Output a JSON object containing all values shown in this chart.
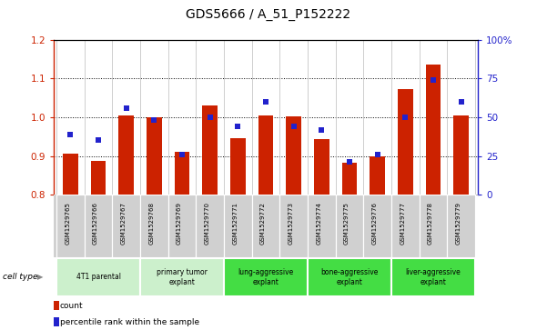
{
  "title": "GDS5666 / A_51_P152222",
  "samples": [
    "GSM1529765",
    "GSM1529766",
    "GSM1529767",
    "GSM1529768",
    "GSM1529769",
    "GSM1529770",
    "GSM1529771",
    "GSM1529772",
    "GSM1529773",
    "GSM1529774",
    "GSM1529775",
    "GSM1529776",
    "GSM1529777",
    "GSM1529778",
    "GSM1529779"
  ],
  "count_values": [
    0.905,
    0.888,
    1.005,
    1.0,
    0.91,
    1.03,
    0.945,
    1.005,
    1.003,
    0.943,
    0.883,
    0.9,
    1.073,
    1.135,
    1.005
  ],
  "percentile_right": [
    39,
    35,
    56,
    48,
    26,
    50,
    44,
    60,
    44,
    42,
    21,
    26,
    50,
    74,
    60
  ],
  "ylim_left": [
    0.8,
    1.2
  ],
  "ylim_right": [
    0,
    100
  ],
  "yticks_left": [
    0.8,
    0.9,
    1.0,
    1.1,
    1.2
  ],
  "yticks_right": [
    0,
    25,
    50,
    75,
    100
  ],
  "ytick_labels_right": [
    "0",
    "25",
    "50",
    "75",
    "100%"
  ],
  "bar_color": "#cc2200",
  "dot_color": "#2222cc",
  "bar_width": 0.55,
  "groups": [
    {
      "label": "4T1 parental",
      "start": 0,
      "end": 2,
      "color": "#ccf0cc"
    },
    {
      "label": "primary tumor\nexplant",
      "start": 3,
      "end": 5,
      "color": "#ccf0cc"
    },
    {
      "label": "lung-aggressive\nexplant",
      "start": 6,
      "end": 8,
      "color": "#44dd44"
    },
    {
      "label": "bone-aggressive\nexplant",
      "start": 9,
      "end": 11,
      "color": "#44dd44"
    },
    {
      "label": "liver-aggressive\nexplant",
      "start": 12,
      "end": 14,
      "color": "#44dd44"
    }
  ],
  "cell_type_label": "cell type",
  "legend_count": "count",
  "legend_percentile": "percentile rank within the sample",
  "bg_color": "#ffffff",
  "axis_color_left": "#cc2200",
  "axis_color_right": "#2222cc",
  "sample_bg_color": "#d0d0d0",
  "grid_lines": [
    0.9,
    1.0,
    1.1
  ],
  "title_fontsize": 10
}
